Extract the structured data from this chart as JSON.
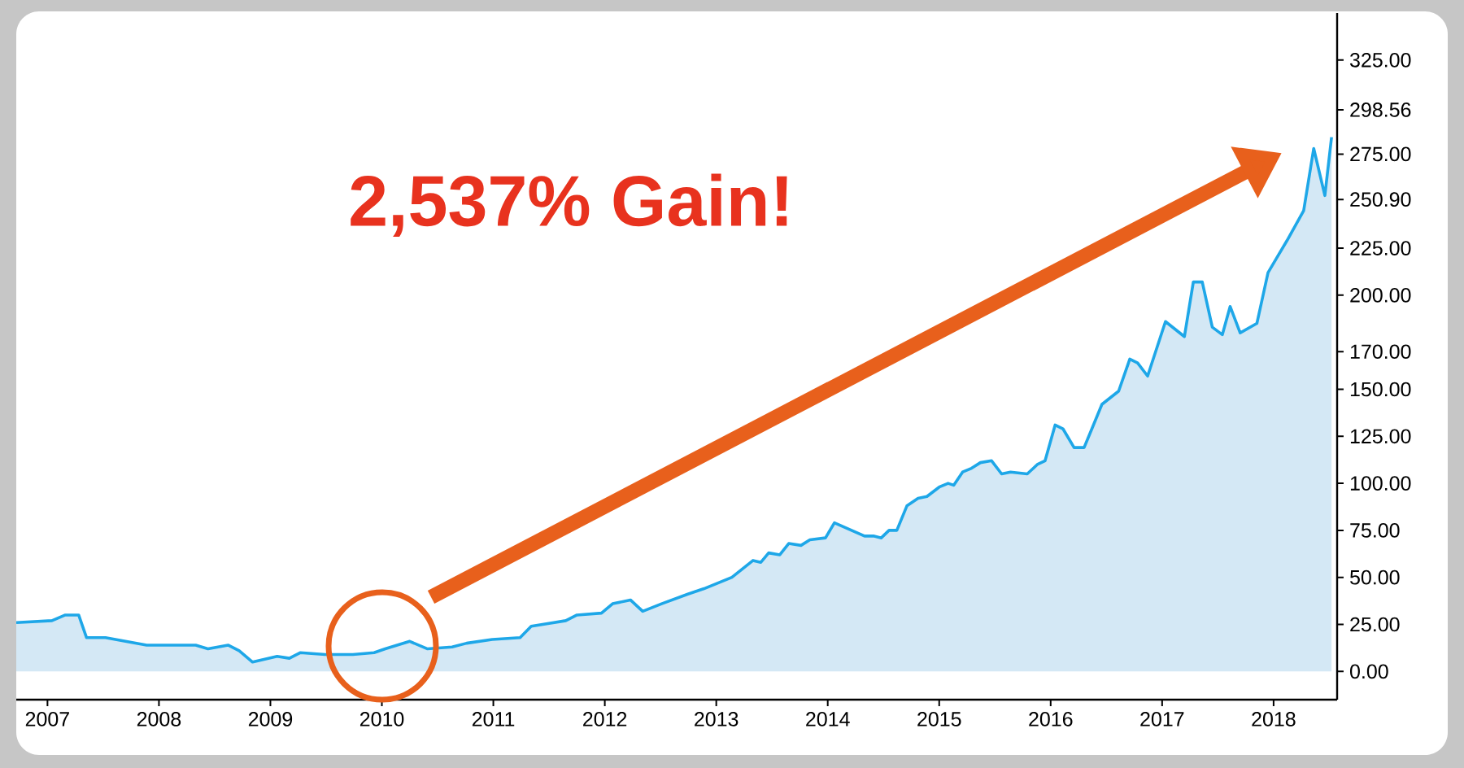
{
  "chart_data": {
    "type": "area",
    "annotations": [
      "2,537% Gain!"
    ],
    "color": "#1ea7e8",
    "x": [
      2006.72,
      2007.04,
      2007.16,
      2007.28,
      2007.35,
      2007.52,
      2007.89,
      2008.03,
      2008.33,
      2008.44,
      2008.62,
      2008.72,
      2008.84,
      2009.06,
      2009.17,
      2009.27,
      2009.49,
      2009.74,
      2009.93,
      2010.03,
      2010.25,
      2010.41,
      2010.63,
      2010.76,
      2010.99,
      2011.24,
      2011.34,
      2011.65,
      2011.75,
      2011.97,
      2012.07,
      2012.23,
      2012.34,
      2012.51,
      2012.74,
      2012.89,
      2013.14,
      2013.33,
      2013.4,
      2013.47,
      2013.57,
      2013.65,
      2013.76,
      2013.84,
      2013.98,
      2014.06,
      2014.33,
      2014.41,
      2014.48,
      2014.55,
      2014.62,
      2014.71,
      2014.81,
      2014.89,
      2015.0,
      2015.08,
      2015.13,
      2015.21,
      2015.29,
      2015.37,
      2015.47,
      2015.56,
      2015.64,
      2015.79,
      2015.88,
      2015.95,
      2016.04,
      2016.11,
      2016.21,
      2016.3,
      2016.37,
      2016.46,
      2016.61,
      2016.71,
      2016.78,
      2016.87,
      2017.03,
      2017.2,
      2017.28,
      2017.36,
      2017.45,
      2017.54,
      2017.61,
      2017.7,
      2017.85,
      2017.95,
      2018.02,
      2018.12,
      2018.27,
      2018.36,
      2018.46,
      2018.52
    ],
    "values": [
      26,
      27,
      30,
      30,
      18,
      18,
      14,
      14,
      14,
      12,
      14,
      11,
      5,
      8,
      7,
      10,
      9,
      9,
      10,
      12,
      16,
      12,
      13,
      15,
      17,
      18,
      24,
      27,
      30,
      31,
      36,
      38,
      32,
      36,
      41,
      44,
      50,
      59,
      58,
      63,
      62,
      68,
      67,
      70,
      71,
      79,
      72,
      72,
      71,
      75,
      75,
      88,
      92,
      93,
      98,
      100,
      99,
      106,
      108,
      111,
      112,
      105,
      106,
      105,
      110,
      112,
      131,
      129,
      119,
      119,
      129,
      142,
      149,
      166,
      164,
      157,
      186,
      178,
      207,
      207,
      183,
      179,
      194,
      180,
      185,
      212,
      219,
      229,
      245,
      278,
      253,
      284
    ],
    "xlim": [
      2006.72,
      2018.57
    ],
    "ylim": [
      -15,
      350
    ],
    "xticks": [
      2007,
      2008,
      2009,
      2010,
      2011,
      2012,
      2013,
      2014,
      2015,
      2016,
      2017,
      2018
    ],
    "yticks": [
      {
        "value": 0,
        "label": "0.00"
      },
      {
        "value": 25,
        "label": "25.00"
      },
      {
        "value": 50,
        "label": "50.00"
      },
      {
        "value": 75,
        "label": "75.00"
      },
      {
        "value": 100,
        "label": "100.00"
      },
      {
        "value": 125,
        "label": "125.00"
      },
      {
        "value": 150,
        "label": "150.00"
      },
      {
        "value": 170,
        "label": "170.00"
      },
      {
        "value": 200,
        "label": "200.00"
      },
      {
        "value": 225,
        "label": "225.00"
      },
      {
        "value": 250.9,
        "label": "250.90"
      },
      {
        "value": 275,
        "label": "275.00"
      },
      {
        "value": 298.56,
        "label": "298.56"
      },
      {
        "value": 325,
        "label": "325.00"
      }
    ]
  }
}
